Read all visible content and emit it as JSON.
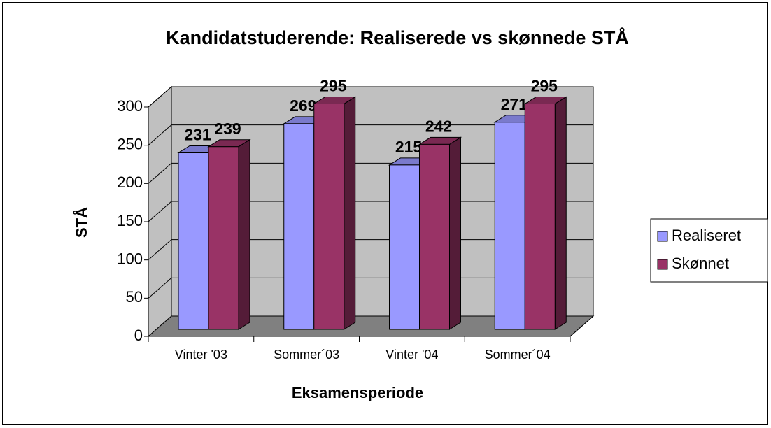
{
  "chart_data": {
    "type": "bar",
    "title": "Kandidatstuderende: Realiserede vs skønnede STÅ",
    "x_label": "Eksamensperiode",
    "y_label": "STÅ",
    "categories": [
      "Vinter '03",
      "Sommer´03",
      "Vinter '04",
      "Sommer´04"
    ],
    "series": [
      {
        "name": "Realiseret",
        "color": "#9999ff",
        "values": [
          231,
          269,
          215,
          271
        ]
      },
      {
        "name": "Skønnet",
        "color": "#993366",
        "values": [
          239,
          295,
          242,
          295
        ]
      }
    ],
    "ylim": [
      0,
      300
    ],
    "yticks": [
      0,
      50,
      100,
      150,
      200,
      250,
      300
    ],
    "grid": true,
    "legend": "right"
  }
}
